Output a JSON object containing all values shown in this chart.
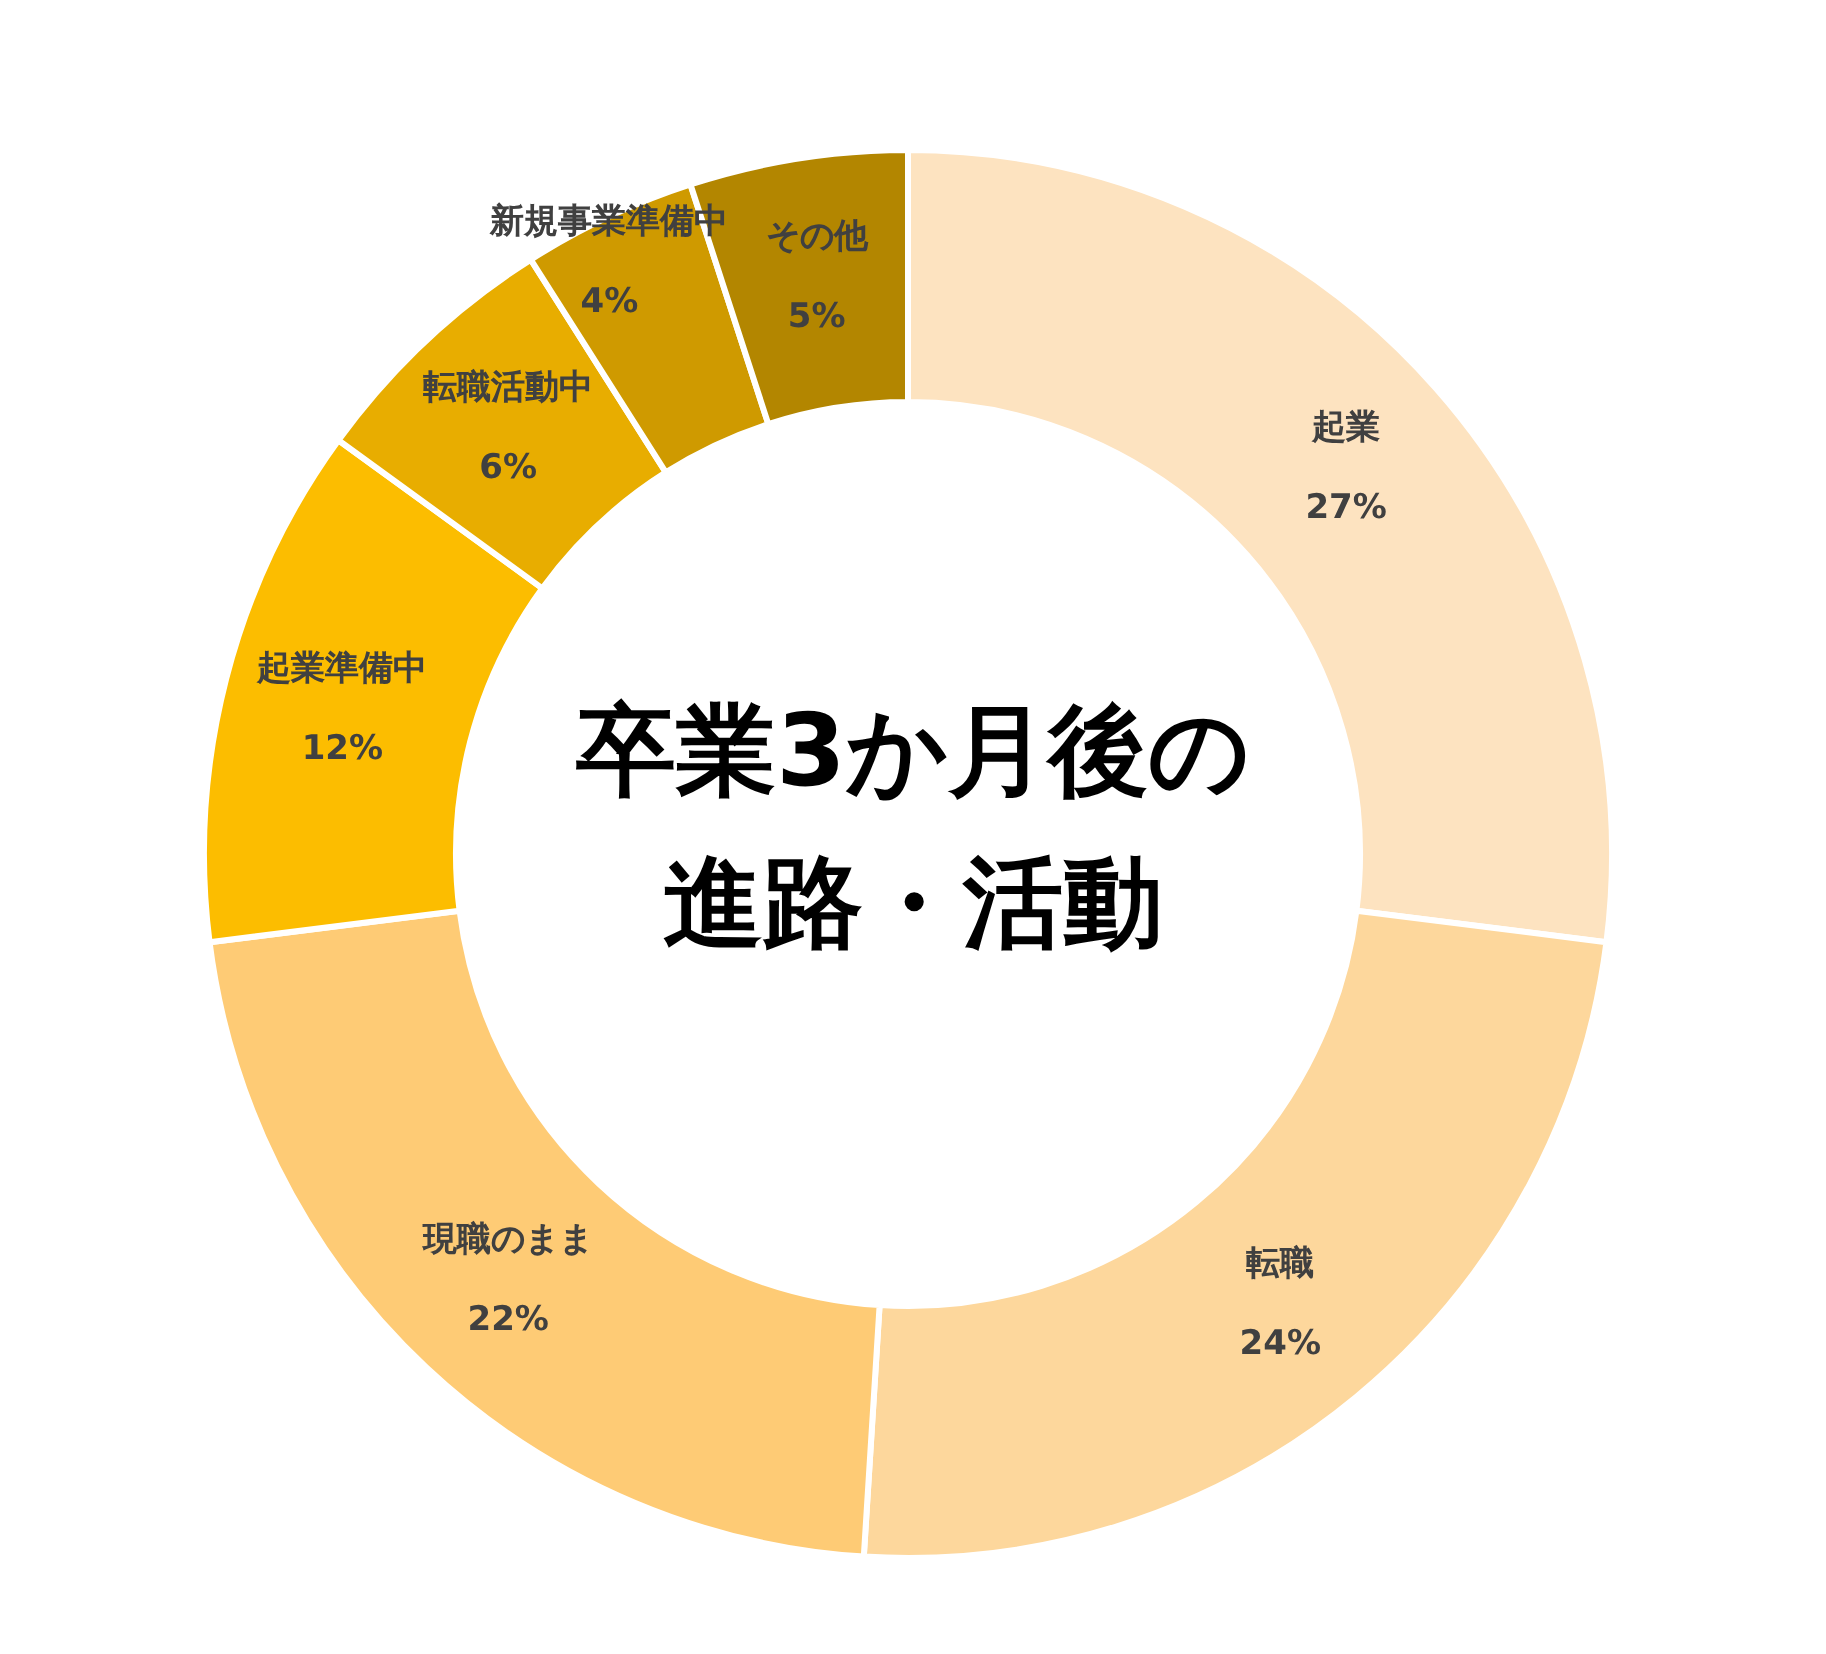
{
  "chart_data": {
    "type": "donut",
    "title": "卒業3か月後の進路・活動",
    "categories": [
      "起業",
      "転職",
      "現職のまま",
      "起業準備中",
      "転職活動中",
      "新規事業準備中",
      "その他"
    ],
    "values": [
      27,
      24,
      22,
      12,
      6,
      4,
      5
    ],
    "colors": [
      "#fde3c0",
      "#fdd79c",
      "#fecb75",
      "#fcbd00",
      "#e8ad00",
      "#cf9a00",
      "#b38600"
    ],
    "value_labels": [
      "27%",
      "24%",
      "22%",
      "12%",
      "6%",
      "4%",
      "5%"
    ]
  }
}
